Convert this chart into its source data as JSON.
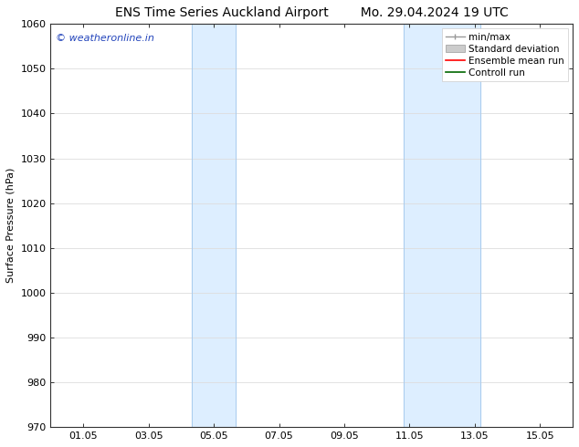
{
  "title_left": "ENS Time Series Auckland Airport",
  "title_right": "Mo. 29.04.2024 19 UTC",
  "ylabel": "Surface Pressure (hPa)",
  "ylim": [
    970,
    1060
  ],
  "yticks": [
    970,
    980,
    990,
    1000,
    1010,
    1020,
    1030,
    1040,
    1050,
    1060
  ],
  "xtick_labels": [
    "01.05",
    "03.05",
    "05.05",
    "07.05",
    "09.05",
    "11.05",
    "13.05",
    "15.05"
  ],
  "xtick_positions": [
    1,
    3,
    5,
    7,
    9,
    11,
    13,
    15
  ],
  "xlim": [
    0,
    16
  ],
  "shaded_bands": [
    {
      "x_start": 4.33,
      "x_end": 5.67,
      "color": "#ddeeff"
    },
    {
      "x_start": 10.83,
      "x_end": 13.17,
      "color": "#ddeeff"
    }
  ],
  "band_edge_color": "#aaccee",
  "watermark_text": "© weatheronline.in",
  "watermark_color": "#2244bb",
  "legend_items": [
    {
      "label": "min/max",
      "color": "#999999"
    },
    {
      "label": "Standard deviation",
      "color": "#cccccc"
    },
    {
      "label": "Ensemble mean run",
      "color": "#ff0000"
    },
    {
      "label": "Controll run",
      "color": "#006600"
    }
  ],
  "bg_color": "#ffffff",
  "grid_color": "#dddddd",
  "title_fontsize": 10,
  "label_fontsize": 8,
  "tick_fontsize": 8,
  "watermark_fontsize": 8,
  "legend_fontsize": 7.5
}
